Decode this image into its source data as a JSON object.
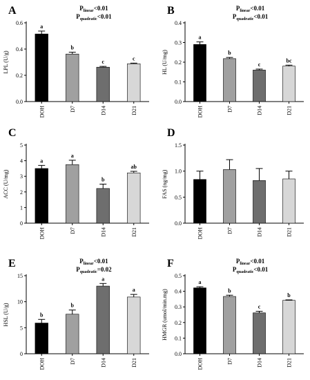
{
  "chart_data": [
    {
      "panel": "A",
      "type": "bar",
      "ylabel": "LPL (U/g)",
      "categories": [
        "DOH",
        "D7",
        "D14",
        "D21"
      ],
      "values": [
        0.515,
        0.362,
        0.262,
        0.288
      ],
      "errors": [
        0.022,
        0.014,
        0.006,
        0.005
      ],
      "significance": [
        "a",
        "b",
        "c",
        "c"
      ],
      "ylim": [
        0,
        0.6
      ],
      "yticks": [
        "0.0",
        "0.2",
        "0.4",
        "0.6"
      ],
      "stats": [
        {
          "prefix": "P",
          "sub": "linear",
          "suffix": "<0.01"
        },
        {
          "prefix": "P",
          "sub": "quadratic",
          "suffix": "<0.01"
        }
      ]
    },
    {
      "panel": "B",
      "type": "bar",
      "ylabel": "HL (U/mg)",
      "categories": [
        "DOH",
        "D7",
        "D14",
        "D21"
      ],
      "values": [
        0.29,
        0.218,
        0.16,
        0.18
      ],
      "errors": [
        0.013,
        0.006,
        0.005,
        0.005
      ],
      "significance": [
        "a",
        "b",
        "c",
        "bc"
      ],
      "ylim": [
        0,
        0.4
      ],
      "yticks": [
        "0.0",
        "0.1",
        "0.2",
        "0.3",
        "0.4"
      ],
      "stats": [
        {
          "prefix": "P",
          "sub": "linear",
          "suffix": "<0.01"
        },
        {
          "prefix": "P",
          "sub": "quadratic",
          "suffix": "<0.01"
        }
      ]
    },
    {
      "panel": "C",
      "type": "bar",
      "ylabel": "ACC (U/mg)",
      "categories": [
        "DOH",
        "D7",
        "D14",
        "D21"
      ],
      "values": [
        3.5,
        3.75,
        2.22,
        3.22
      ],
      "errors": [
        0.2,
        0.28,
        0.28,
        0.1
      ],
      "significance": [
        "a",
        "a",
        "b",
        "ab"
      ],
      "ylim": [
        0,
        5
      ],
      "yticks": [
        "0",
        "1",
        "2",
        "3",
        "4",
        "5"
      ],
      "stats": []
    },
    {
      "panel": "D",
      "type": "bar",
      "ylabel": "FAS (ng/mg)",
      "categories": [
        "DOH",
        "D7",
        "D14",
        "D21"
      ],
      "values": [
        0.84,
        1.03,
        0.82,
        0.85
      ],
      "errors": [
        0.16,
        0.19,
        0.23,
        0.15
      ],
      "significance": [
        "",
        "",
        "",
        ""
      ],
      "ylim": [
        0,
        1.5
      ],
      "yticks": [
        "0.0",
        "0.5",
        "1.0",
        "1.5"
      ],
      "stats": []
    },
    {
      "panel": "E",
      "type": "bar",
      "ylabel": "HSL (U/g)",
      "categories": [
        "DOH",
        "D7",
        "D14",
        "D21"
      ],
      "values": [
        5.9,
        7.6,
        13.0,
        10.9
      ],
      "errors": [
        0.7,
        0.8,
        0.5,
        0.5
      ],
      "significance": [
        "b",
        "b",
        "a",
        "a"
      ],
      "ylim": [
        0,
        15
      ],
      "yticks": [
        "0",
        "5",
        "10",
        "15"
      ],
      "stats": [
        {
          "prefix": "P",
          "sub": "linear",
          "suffix": "<0.01"
        },
        {
          "prefix": "P",
          "sub": "quadratic",
          "suffix": "=0.02"
        }
      ]
    },
    {
      "panel": "F",
      "type": "bar",
      "ylabel": "HMGR (umol/min.mg)",
      "categories": [
        "DOH",
        "D7",
        "D14",
        "D21"
      ],
      "values": [
        0.422,
        0.367,
        0.262,
        0.342
      ],
      "errors": [
        0.007,
        0.008,
        0.01,
        0.003
      ],
      "significance": [
        "a",
        "b",
        "c",
        "b"
      ],
      "ylim": [
        0,
        0.5
      ],
      "yticks": [
        "0.0",
        "0.1",
        "0.2",
        "0.3",
        "0.4",
        "0.5"
      ],
      "stats": [
        {
          "prefix": "P",
          "sub": "linear",
          "suffix": "<0.01"
        },
        {
          "prefix": "P",
          "sub": "quadratic",
          "suffix": "<0.01"
        }
      ]
    }
  ],
  "colors": {
    "bars": [
      "#000000",
      "#a0a0a0",
      "#6e6e6e",
      "#d7d7d7"
    ],
    "axis": "#000000"
  }
}
